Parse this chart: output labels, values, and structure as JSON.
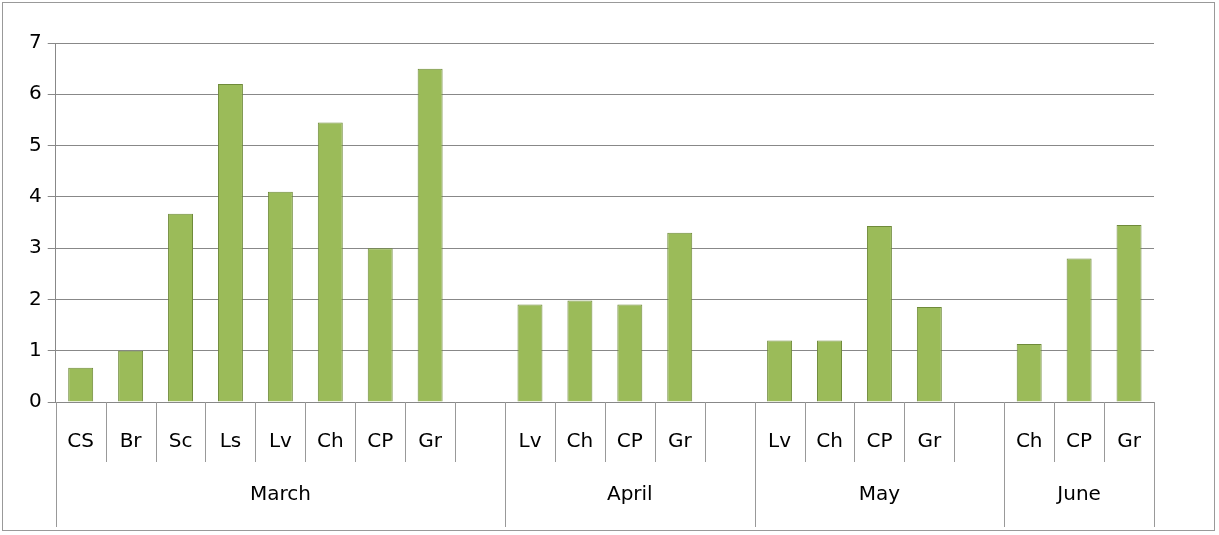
{
  "chart_data": {
    "type": "bar",
    "categories": [
      "CS",
      "Br",
      "Sc",
      "Ls",
      "Lv",
      "Ch",
      "CP",
      "Gr",
      null,
      "Lv",
      "Ch",
      "CP",
      "Gr",
      null,
      "Lv",
      "Ch",
      "CP",
      "Gr",
      null,
      "Ch",
      "CP",
      "Gr"
    ],
    "values": [
      0.67,
      1.0,
      3.67,
      6.2,
      4.1,
      5.45,
      3.0,
      6.5,
      null,
      1.9,
      1.98,
      1.9,
      3.3,
      null,
      1.2,
      1.2,
      3.43,
      1.85,
      null,
      1.13,
      2.8,
      3.45
    ],
    "color": "#9bbb59",
    "ylim": [
      0,
      7
    ],
    "yticks": [
      0,
      1,
      2,
      3,
      4,
      5,
      6,
      7
    ],
    "grid": "y",
    "legend": false,
    "annotations": [
      "March",
      "April",
      "May",
      "June"
    ]
  }
}
